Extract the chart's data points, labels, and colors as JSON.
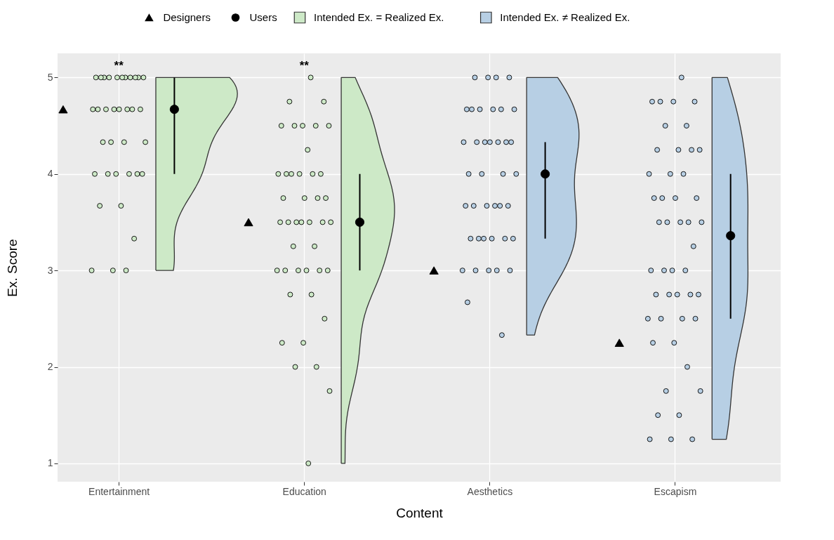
{
  "chart_data": {
    "type": "scatter",
    "xlabel": "Content",
    "ylabel": "Ex. Score",
    "categories": [
      "Entertainment",
      "Education",
      "Aesthetics",
      "Escapism"
    ],
    "ylim": [
      0.81,
      5.25
    ],
    "yticks": [
      1,
      2,
      3,
      4,
      5
    ],
    "grid": true,
    "legend": "top",
    "annotations": [
      "**",
      "**"
    ],
    "series": [
      {
        "name": "Intended Ex. = Realized Ex.",
        "type": "scatter",
        "marker": "circle",
        "color": "#cde9c7",
        "x": [
          "Entertainment",
          "Entertainment",
          "Entertainment",
          "Entertainment",
          "Entertainment",
          "Entertainment",
          "Entertainment",
          "Entertainment",
          "Entertainment",
          "Entertainment",
          "Entertainment",
          "Entertainment",
          "Entertainment",
          "Entertainment",
          "Entertainment",
          "Entertainment",
          "Entertainment",
          "Entertainment",
          "Entertainment",
          "Entertainment",
          "Entertainment",
          "Entertainment",
          "Entertainment",
          "Entertainment",
          "Entertainment",
          "Entertainment",
          "Entertainment",
          "Entertainment",
          "Entertainment",
          "Entertainment",
          "Entertainment",
          "Entertainment",
          "Entertainment",
          "Entertainment",
          "Entertainment"
        ],
        "values": [
          5,
          5,
          5,
          5,
          5,
          5,
          5,
          5,
          5,
          5,
          5,
          4.67,
          4.67,
          4.67,
          4.67,
          4.67,
          4.67,
          4.67,
          4.67,
          4.33,
          4.33,
          4.33,
          4.33,
          4,
          4,
          4,
          4,
          4,
          4,
          3.67,
          3.67,
          3.33,
          3,
          3,
          3
        ]
      },
      {
        "type": "scatter",
        "marker": "circle",
        "color": "#cde9c7",
        "x": [
          "Education",
          "Education",
          "Education",
          "Education",
          "Education",
          "Education",
          "Education",
          "Education",
          "Education",
          "Education",
          "Education",
          "Education",
          "Education",
          "Education",
          "Education",
          "Education",
          "Education",
          "Education",
          "Education",
          "Education",
          "Education",
          "Education",
          "Education",
          "Education",
          "Education",
          "Education",
          "Education",
          "Education",
          "Education",
          "Education",
          "Education",
          "Education",
          "Education",
          "Education",
          "Education",
          "Education",
          "Education",
          "Education",
          "Education",
          "Education",
          "Education",
          "Education",
          "Education"
        ],
        "values": [
          5,
          4.75,
          4.75,
          4.5,
          4.5,
          4.5,
          4.5,
          4.5,
          4.25,
          4,
          4,
          4,
          4,
          4,
          4,
          3.75,
          3.75,
          3.75,
          3.75,
          3.5,
          3.5,
          3.5,
          3.5,
          3.5,
          3.5,
          3.5,
          3.25,
          3.25,
          3,
          3,
          3,
          3,
          3,
          3,
          2.75,
          2.75,
          2.5,
          2.25,
          2.25,
          2,
          2,
          1.75,
          1
        ]
      },
      {
        "name": "Intended Ex. ≠ Realized Ex.",
        "type": "scatter",
        "marker": "circle",
        "color": "#b7cfe4",
        "x": [
          "Aesthetics",
          "Aesthetics",
          "Aesthetics",
          "Aesthetics",
          "Aesthetics",
          "Aesthetics",
          "Aesthetics",
          "Aesthetics",
          "Aesthetics",
          "Aesthetics",
          "Aesthetics",
          "Aesthetics",
          "Aesthetics",
          "Aesthetics",
          "Aesthetics",
          "Aesthetics",
          "Aesthetics",
          "Aesthetics",
          "Aesthetics",
          "Aesthetics",
          "Aesthetics",
          "Aesthetics",
          "Aesthetics",
          "Aesthetics",
          "Aesthetics",
          "Aesthetics",
          "Aesthetics",
          "Aesthetics",
          "Aesthetics",
          "Aesthetics",
          "Aesthetics",
          "Aesthetics",
          "Aesthetics",
          "Aesthetics",
          "Aesthetics",
          "Aesthetics",
          "Aesthetics",
          "Aesthetics",
          "Aesthetics",
          "Aesthetics"
        ],
        "values": [
          5,
          5,
          5,
          5,
          4.67,
          4.67,
          4.67,
          4.67,
          4.67,
          4.67,
          4.33,
          4.33,
          4.33,
          4.33,
          4.33,
          4.33,
          4.33,
          4,
          4,
          4,
          4,
          3.67,
          3.67,
          3.67,
          3.67,
          3.67,
          3.67,
          3.33,
          3.33,
          3.33,
          3.33,
          3.33,
          3.33,
          3,
          3,
          3,
          3,
          3,
          2.67,
          2.33
        ]
      },
      {
        "type": "scatter",
        "marker": "circle",
        "color": "#b7cfe4",
        "x": [
          "Escapism",
          "Escapism",
          "Escapism",
          "Escapism",
          "Escapism",
          "Escapism",
          "Escapism",
          "Escapism",
          "Escapism",
          "Escapism",
          "Escapism",
          "Escapism",
          "Escapism",
          "Escapism",
          "Escapism",
          "Escapism",
          "Escapism",
          "Escapism",
          "Escapism",
          "Escapism",
          "Escapism",
          "Escapism",
          "Escapism",
          "Escapism",
          "Escapism",
          "Escapism",
          "Escapism",
          "Escapism",
          "Escapism",
          "Escapism",
          "Escapism",
          "Escapism",
          "Escapism",
          "Escapism",
          "Escapism",
          "Escapism",
          "Escapism",
          "Escapism",
          "Escapism",
          "Escapism",
          "Escapism",
          "Escapism",
          "Escapism",
          "Escapism",
          "Escapism",
          "Escapism",
          "Escapism"
        ],
        "values": [
          5,
          4.75,
          4.75,
          4.75,
          4.75,
          4.5,
          4.5,
          4.25,
          4.25,
          4.25,
          4.25,
          4,
          4,
          4,
          3.75,
          3.75,
          3.75,
          3.75,
          3.5,
          3.5,
          3.5,
          3.5,
          3.5,
          3.25,
          3,
          3,
          3,
          3,
          2.75,
          2.75,
          2.75,
          2.75,
          2.75,
          2.5,
          2.5,
          2.5,
          2.5,
          2.25,
          2.25,
          2,
          1.75,
          1.75,
          1.5,
          1.5,
          1.25,
          1.25,
          1.25
        ]
      },
      {
        "name": "Users",
        "type": "scatter",
        "marker": "circle",
        "color": "#000000",
        "values": [
          4.67,
          3.5,
          4.0,
          3.36
        ],
        "errors": [
          [
            4,
            5
          ],
          [
            3,
            4
          ],
          [
            3.33,
            4.33
          ],
          [
            2.5,
            4
          ]
        ]
      },
      {
        "name": "Designers",
        "type": "scatter",
        "marker": "triangle",
        "color": "#000000",
        "values": [
          4.67,
          3.5,
          3.0,
          2.25
        ]
      }
    ]
  }
}
